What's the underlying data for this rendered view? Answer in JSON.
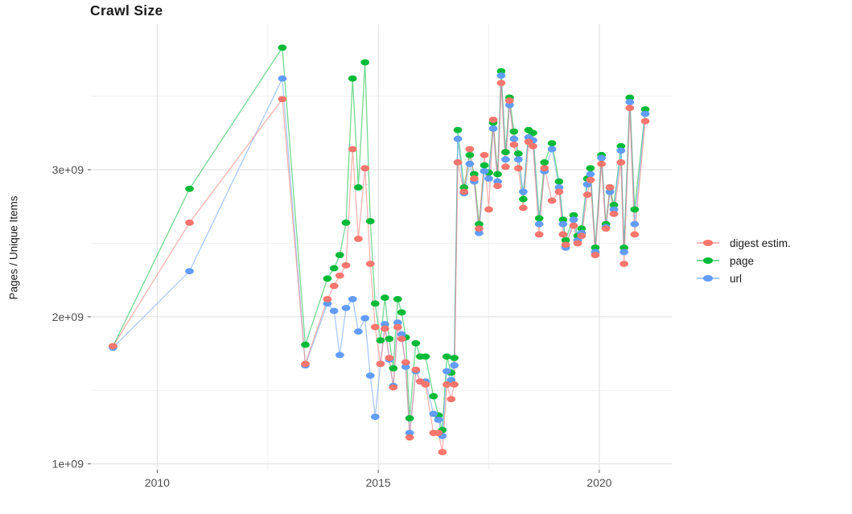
{
  "chart_data": {
    "type": "line",
    "title": "Crawl Size",
    "xlabel": "",
    "ylabel": "Pages / Unique Items",
    "grid": {
      "major_color": "#e3e3e3",
      "minor_color": "#f1f1f1",
      "show": true
    },
    "tick_text_color": "#4d4d4d",
    "tick_mark_color": "#555555",
    "legend_position": "right",
    "x_axis": {
      "range": [
        2008.5,
        2021.64
      ],
      "ticks": [
        2010,
        2015,
        2020
      ],
      "tick_labels": [
        "2010",
        "2015",
        "2020"
      ],
      "minor_gridlines": [
        2012.5,
        2017.5
      ]
    },
    "y_axis": {
      "range": [
        960000000.0,
        3990000000.0
      ],
      "ticks": [
        1000000000.0,
        2000000000.0,
        3000000000.0
      ],
      "tick_labels": [
        "1e+09",
        "2e+09",
        "3e+09"
      ],
      "minor_gridlines": [
        1500000000.0,
        2500000000.0,
        3500000000.0
      ]
    },
    "x": [
      2009.0,
      2010.73,
      2012.83,
      2013.35,
      2013.85,
      2014.0,
      2014.13,
      2014.27,
      2014.42,
      2014.55,
      2014.7,
      2014.82,
      2014.93,
      2015.05,
      2015.15,
      2015.25,
      2015.34,
      2015.44,
      2015.53,
      2015.62,
      2015.71,
      2015.85,
      2015.95,
      2016.07,
      2016.25,
      2016.36,
      2016.45,
      2016.55,
      2016.65,
      2016.72,
      2016.8,
      2016.94,
      2017.07,
      2017.17,
      2017.28,
      2017.4,
      2017.5,
      2017.6,
      2017.7,
      2017.78,
      2017.88,
      2017.97,
      2018.07,
      2018.17,
      2018.28,
      2018.4,
      2018.5,
      2018.64,
      2018.76,
      2018.93,
      2019.09,
      2019.18,
      2019.24,
      2019.42,
      2019.51,
      2019.6,
      2019.73,
      2019.8,
      2019.91,
      2020.05,
      2020.15,
      2020.24,
      2020.33,
      2020.49,
      2020.56,
      2020.69,
      2020.8,
      2021.04
    ],
    "series": [
      {
        "name": "digest estim.",
        "color": "#F8766D",
        "values": [
          1800000000.0,
          2640000000.0,
          3480000000.0,
          1680000000.0,
          2120000000.0,
          2210000000.0,
          2280000000.0,
          2350000000.0,
          3140000000.0,
          2530000000.0,
          3010000000.0,
          2360000000.0,
          1930000000.0,
          1680000000.0,
          1920000000.0,
          1720000000.0,
          1520000000.0,
          1930000000.0,
          1850000000.0,
          1690000000.0,
          1180000000.0,
          1640000000.0,
          1560000000.0,
          1540000000.0,
          1210000000.0,
          1210000000.0,
          1080000000.0,
          1540000000.0,
          1440000000.0,
          1540000000.0,
          3050000000.0,
          2850000000.0,
          3140000000.0,
          2940000000.0,
          2600000000.0,
          3100000000.0,
          2730000000.0,
          3340000000.0,
          2890000000.0,
          3590000000.0,
          3020000000.0,
          3470000000.0,
          3170000000.0,
          3010000000.0,
          2740000000.0,
          3190000000.0,
          3160000000.0,
          2560000000.0,
          3010000000.0,
          2790000000.0,
          2850000000.0,
          2560000000.0,
          2490000000.0,
          2620000000.0,
          2500000000.0,
          2550000000.0,
          2830000000.0,
          2930000000.0,
          2420000000.0,
          3040000000.0,
          2600000000.0,
          2880000000.0,
          2700000000.0,
          3050000000.0,
          2360000000.0,
          3420000000.0,
          2560000000.0,
          3330000000.0
        ]
      },
      {
        "name": "page",
        "color": "#00BA38",
        "values": [
          1800000000.0,
          2870000000.0,
          3830000000.0,
          1810000000.0,
          2260000000.0,
          2330000000.0,
          2420000000.0,
          2640000000.0,
          3620000000.0,
          2880000000.0,
          3730000000.0,
          2650000000.0,
          2090000000.0,
          1840000000.0,
          2130000000.0,
          1850000000.0,
          1650000000.0,
          2120000000.0,
          2030000000.0,
          1860000000.0,
          1310000000.0,
          1820000000.0,
          1730000000.0,
          1730000000.0,
          1460000000.0,
          1330000000.0,
          1230000000.0,
          1730000000.0,
          1620000000.0,
          1720000000.0,
          3270000000.0,
          2880000000.0,
          3100000000.0,
          2970000000.0,
          2630000000.0,
          3030000000.0,
          2980000000.0,
          3320000000.0,
          2970000000.0,
          3670000000.0,
          3120000000.0,
          3490000000.0,
          3260000000.0,
          3110000000.0,
          2800000000.0,
          3270000000.0,
          3250000000.0,
          2670000000.0,
          3050000000.0,
          3180000000.0,
          2920000000.0,
          2660000000.0,
          2520000000.0,
          2690000000.0,
          2550000000.0,
          2600000000.0,
          2940000000.0,
          3010000000.0,
          2470000000.0,
          3100000000.0,
          2630000000.0,
          2880000000.0,
          2760000000.0,
          3160000000.0,
          2470000000.0,
          3490000000.0,
          2730000000.0,
          3410000000.0
        ]
      },
      {
        "name": "url",
        "color": "#619CFF",
        "values": [
          1790000000.0,
          2310000000.0,
          3620000000.0,
          1670000000.0,
          2090000000.0,
          2040000000.0,
          1740000000.0,
          2060000000.0,
          2120000000.0,
          1900000000.0,
          1990000000.0,
          1600000000.0,
          1320000000.0,
          1680000000.0,
          1950000000.0,
          1710000000.0,
          1530000000.0,
          1960000000.0,
          1880000000.0,
          1660000000.0,
          1210000000.0,
          1630000000.0,
          1560000000.0,
          1560000000.0,
          1340000000.0,
          1300000000.0,
          1190000000.0,
          1630000000.0,
          1570000000.0,
          1670000000.0,
          3210000000.0,
          2840000000.0,
          3040000000.0,
          2920000000.0,
          2570000000.0,
          2990000000.0,
          2940000000.0,
          3280000000.0,
          2920000000.0,
          3640000000.0,
          3070000000.0,
          3440000000.0,
          3210000000.0,
          3070000000.0,
          2850000000.0,
          3220000000.0,
          3200000000.0,
          2630000000.0,
          2990000000.0,
          3140000000.0,
          2880000000.0,
          2630000000.0,
          2470000000.0,
          2660000000.0,
          2520000000.0,
          2570000000.0,
          2900000000.0,
          2970000000.0,
          2440000000.0,
          3080000000.0,
          2610000000.0,
          2850000000.0,
          2730000000.0,
          3130000000.0,
          2440000000.0,
          3460000000.0,
          2630000000.0,
          3380000000.0
        ]
      }
    ]
  }
}
